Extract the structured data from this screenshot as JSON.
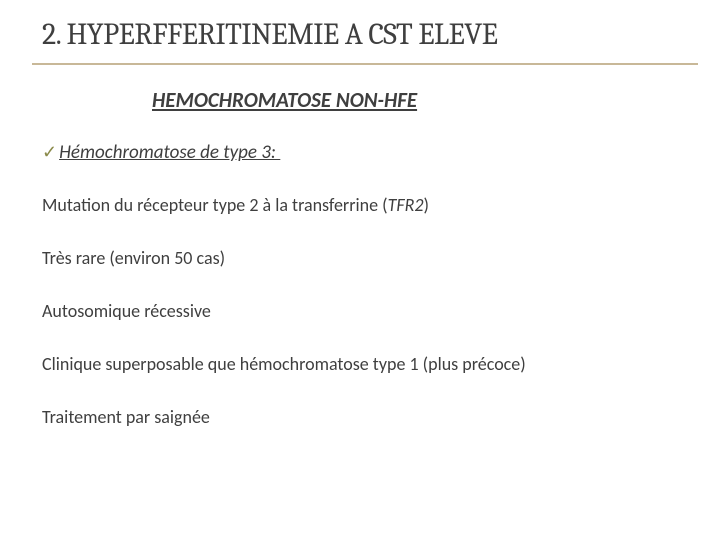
{
  "title": "2. HYPERFFERITINEMIE A CST ELEVE",
  "subtitle": "HEMOCHROMATOSE NON-HFE",
  "bullet": {
    "check": "✓",
    "label": "Hémochromatose de type 3: "
  },
  "lines": {
    "l1_prefix": "Mutation du récepteur type 2 à la transferrine (",
    "l1_italic": "TFR2",
    "l1_suffix": ")",
    "l2": "Très rare (environ 50 cas)",
    "l3": "Autosomique récessive",
    "l4": "Clinique superposable que hémochromatose type 1 (plus précoce)",
    "l5": "Traitement par saignée"
  },
  "colors": {
    "text": "#3f3f3f",
    "accent": "#c8b898",
    "check": "#8a8a4a",
    "background": "#ffffff"
  }
}
